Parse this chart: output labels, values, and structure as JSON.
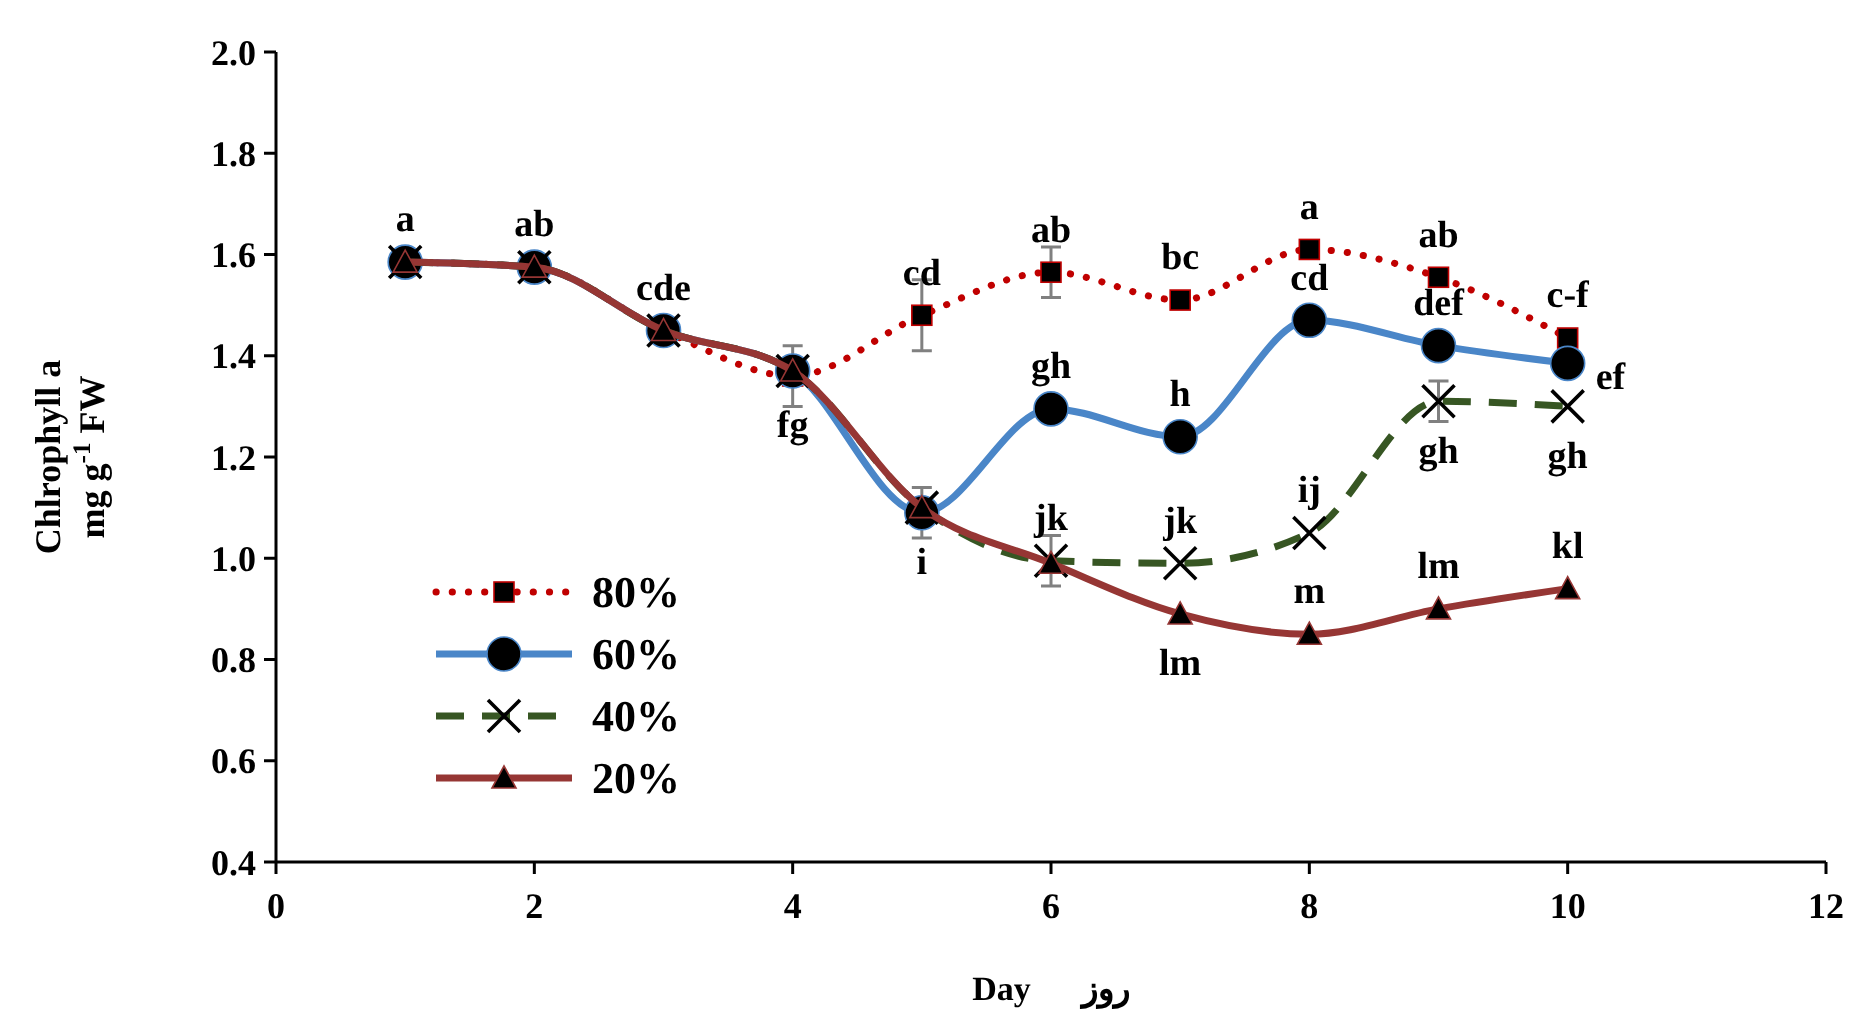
{
  "chart_data": {
    "type": "line",
    "xlabel": "Day      روز",
    "ylabel": "Chlrophyll a\nmg g$^{-1}$ FW",
    "x": [
      1,
      2,
      3,
      4,
      5,
      6,
      7,
      8,
      9,
      10
    ],
    "xlim": [
      0,
      12
    ],
    "xticks": [
      0,
      2,
      4,
      6,
      8,
      10,
      12
    ],
    "ylim": [
      0.4,
      2.0
    ],
    "yticks": [
      {
        "value": 0.4,
        "label": "0.4"
      },
      {
        "value": 0.6,
        "label": "0.6"
      },
      {
        "value": 0.8,
        "label": "0.8"
      },
      {
        "value": 1.0,
        "label": "1.0"
      },
      {
        "value": 1.2,
        "label": "1.2"
      },
      {
        "value": 1.4,
        "label": "1.4"
      },
      {
        "value": 1.6,
        "label": "1.6"
      },
      {
        "value": 1.8,
        "label": "1.8"
      },
      {
        "value": 2.0,
        "label": "2.0"
      }
    ],
    "grid": false,
    "legend": "bottom left",
    "series": [
      {
        "name": "80%",
        "color": "#c00000",
        "marker": "square",
        "line_style": "dotted",
        "values": [
          1.585,
          1.575,
          1.45,
          1.36,
          1.48,
          1.565,
          1.51,
          1.61,
          1.555,
          1.435
        ],
        "errors": [
          null,
          null,
          null,
          0.06,
          0.07,
          0.05,
          null,
          null,
          null,
          null
        ],
        "value_labels": [
          "a",
          "ab",
          "cde",
          "fg",
          "cd",
          "ab",
          "bc",
          "a",
          "ab",
          "c-f"
        ]
      },
      {
        "name": "60%",
        "color": "#4a86c8",
        "marker": "circle",
        "line_style": "solid",
        "values": [
          1.585,
          1.575,
          1.45,
          1.37,
          1.09,
          1.295,
          1.24,
          1.47,
          1.42,
          1.385
        ],
        "errors": [
          null,
          null,
          null,
          null,
          0.05,
          null,
          null,
          null,
          null,
          null
        ],
        "value_labels": [
          null,
          null,
          null,
          null,
          "i",
          "gh",
          "h",
          "cd",
          "def",
          "ef"
        ]
      },
      {
        "name": "40%",
        "color": "#375623",
        "marker": "cross",
        "line_style": "dashed",
        "values": [
          1.585,
          1.575,
          1.45,
          1.37,
          1.1,
          0.995,
          0.99,
          1.05,
          1.31,
          1.3
        ],
        "errors": [
          null,
          null,
          null,
          null,
          null,
          0.05,
          null,
          null,
          0.04,
          null
        ],
        "value_labels": [
          null,
          null,
          null,
          null,
          null,
          "jk",
          "jk",
          "ij",
          "gh",
          "gh"
        ]
      },
      {
        "name": "20%",
        "color": "#963634",
        "marker": "triangle",
        "line_style": "solid",
        "values": [
          1.585,
          1.575,
          1.45,
          1.37,
          1.1,
          0.99,
          0.89,
          0.85,
          0.9,
          0.94
        ],
        "value_labels": [
          null,
          null,
          null,
          null,
          null,
          null,
          "lm",
          "m",
          "lm",
          "kl"
        ]
      }
    ]
  }
}
